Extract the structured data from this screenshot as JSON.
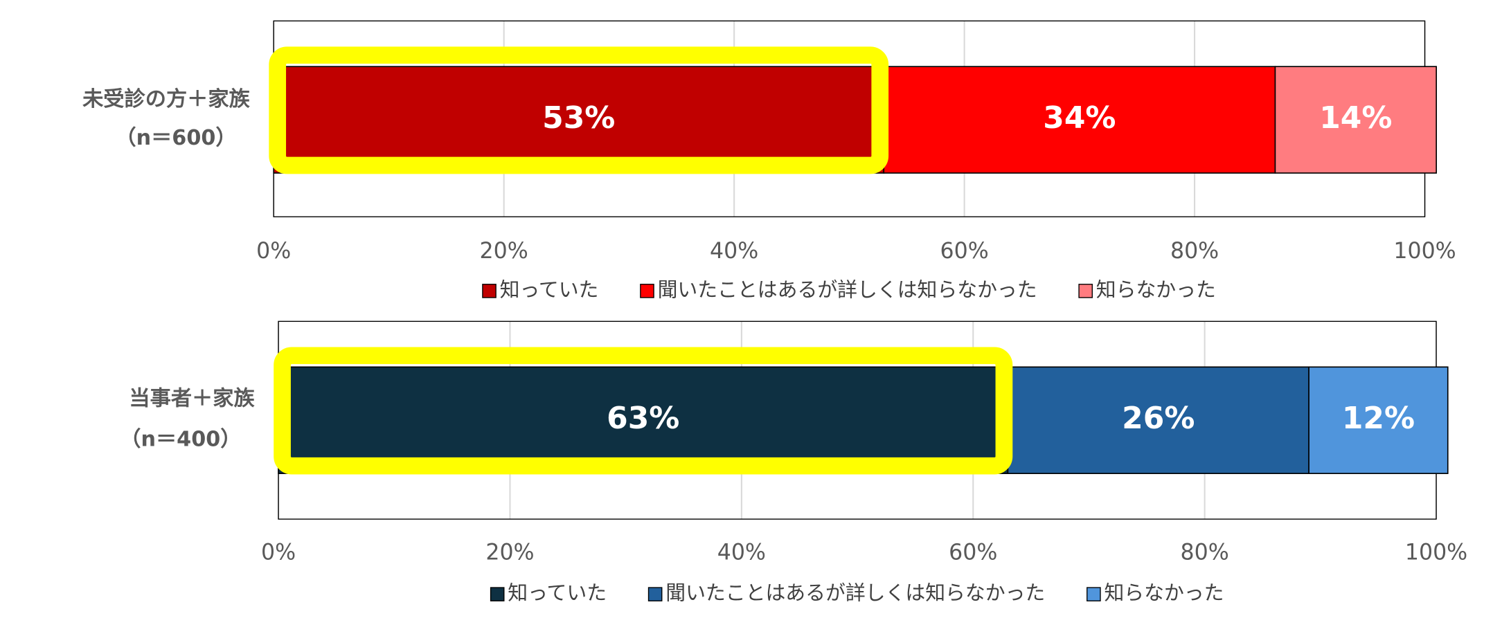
{
  "chart_data": [
    {
      "type": "bar",
      "categories": [
        [
          "未受診の方＋家族",
          "（n＝600）"
        ]
      ],
      "series": [
        {
          "name": "知っていた",
          "color": "#c00000",
          "values": [
            53
          ],
          "value_labels": [
            "53%"
          ]
        },
        {
          "name": "聞いたことはあるが詳しくは知らなかった",
          "color": "#ff0000",
          "values": [
            34
          ],
          "value_labels": [
            "34%"
          ]
        },
        {
          "name": "知らなかった",
          "color": "#ff7c80",
          "values": [
            14
          ],
          "value_labels": [
            "14%"
          ]
        }
      ],
      "xlim": [
        0,
        100
      ],
      "xticks": [
        {
          "value": 0,
          "label": "0%"
        },
        {
          "value": 20,
          "label": "20%"
        },
        {
          "value": 40,
          "label": "40%"
        },
        {
          "value": 60,
          "label": "60%"
        },
        {
          "value": 80,
          "label": "80%"
        },
        {
          "value": 100,
          "label": "100%"
        }
      ],
      "grid": true
    },
    {
      "type": "bar",
      "categories": [
        [
          "当事者＋家族",
          "（n＝400）"
        ]
      ],
      "series": [
        {
          "name": "知っていた",
          "color": "#0e3042",
          "values": [
            63
          ],
          "value_labels": [
            "63%"
          ]
        },
        {
          "name": "聞いたことはあるが詳しくは知らなかった",
          "color": "#22609c",
          "values": [
            26
          ],
          "value_labels": [
            "26%"
          ]
        },
        {
          "name": "知らなかった",
          "color": "#5095dc",
          "values": [
            12
          ],
          "value_labels": [
            "12%"
          ]
        }
      ],
      "xlim": [
        0,
        100
      ],
      "xticks": [
        {
          "value": 0,
          "label": "0%"
        },
        {
          "value": 20,
          "label": "20%"
        },
        {
          "value": 40,
          "label": "40%"
        },
        {
          "value": 60,
          "label": "60%"
        },
        {
          "value": 80,
          "label": "80%"
        },
        {
          "value": 100,
          "label": "100%"
        }
      ],
      "grid": true
    }
  ]
}
